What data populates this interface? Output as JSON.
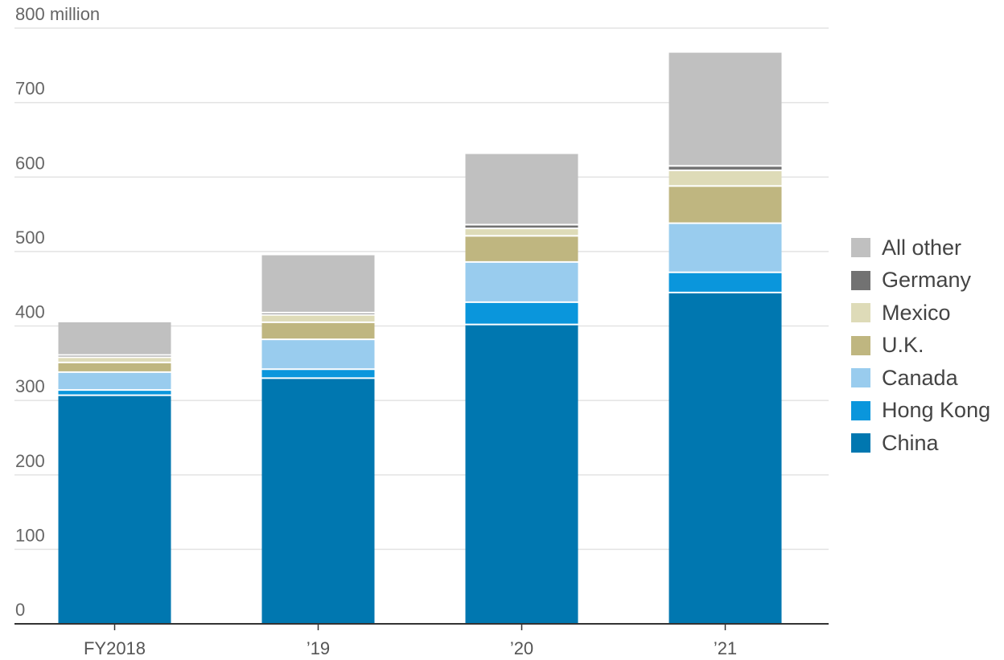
{
  "chart_data": {
    "type": "bar",
    "stacked": true,
    "title": "",
    "xlabel": "",
    "ylabel": "",
    "y_unit_label": "800 million",
    "ylim": [
      0,
      800
    ],
    "yticks": [
      "0",
      "100",
      "200",
      "300",
      "400",
      "500",
      "600",
      "700"
    ],
    "categories": [
      "FY2018",
      "’19",
      "’20",
      "’21"
    ],
    "legend_position": "right",
    "grid": true,
    "series": [
      {
        "name": "China",
        "color": "#0077b0",
        "values": [
          307,
          330,
          402,
          445
        ]
      },
      {
        "name": "Hong Kong",
        "color": "#0a96dc",
        "values": [
          7,
          12,
          30,
          27
        ]
      },
      {
        "name": "Canada",
        "color": "#99ccee",
        "values": [
          24,
          40,
          54,
          66
        ]
      },
      {
        "name": "U.K.",
        "color": "#bfb680",
        "values": [
          13,
          23,
          35,
          50
        ]
      },
      {
        "name": "Mexico",
        "color": "#dedbb8",
        "values": [
          7,
          10,
          10,
          21
        ]
      },
      {
        "name": "Germany",
        "color": "#727272",
        "values": [
          3,
          3,
          5,
          6
        ]
      },
      {
        "name": "All other",
        "color": "#c0c0c0",
        "values": [
          44,
          77,
          95,
          152
        ]
      }
    ]
  }
}
